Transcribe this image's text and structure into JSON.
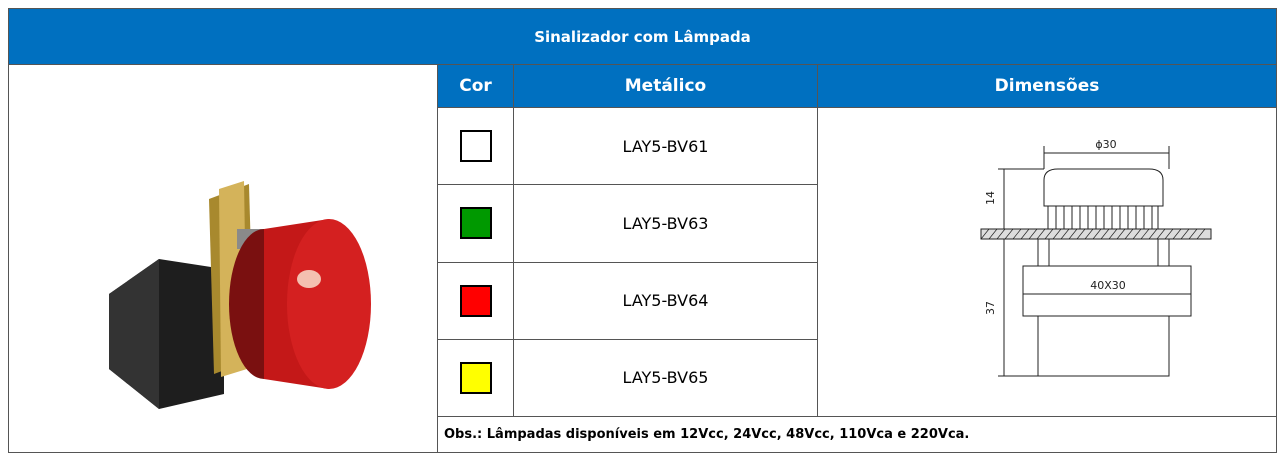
{
  "header": {
    "title": "Sinalizador com Lâmpada"
  },
  "table": {
    "columns": [
      "Cor",
      "Metálico",
      "Dimensões"
    ],
    "rows": [
      {
        "color": "#ffffff",
        "model": "LAY5-BV61"
      },
      {
        "color": "#009900",
        "model": "LAY5-BV63"
      },
      {
        "color": "#ff0000",
        "model": "LAY5-BV64"
      },
      {
        "color": "#ffff00",
        "model": "LAY5-BV65"
      }
    ],
    "note": "Obs.: Lâmpadas disponíveis em 12Vcc, 24Vcc, 48Vcc, 110Vca e 220Vca."
  },
  "drawing": {
    "diameter": "ϕ30",
    "height_top": "14",
    "base": "40X30",
    "height_bottom": "37"
  }
}
